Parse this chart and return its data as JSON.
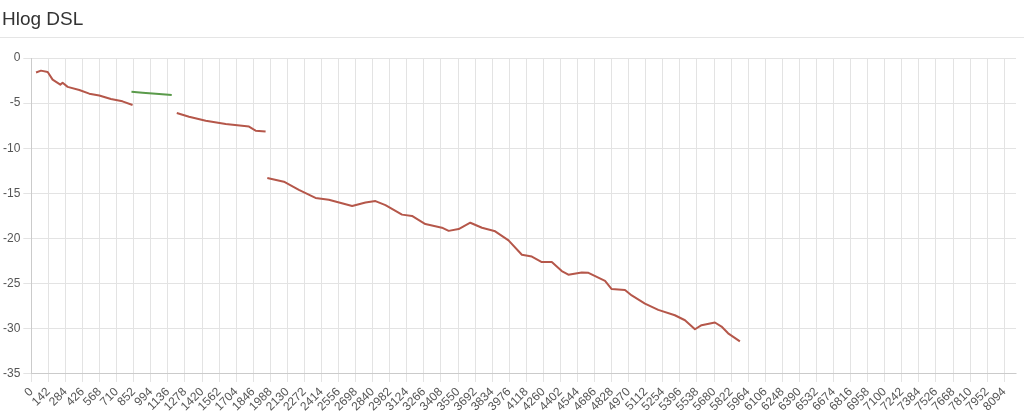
{
  "chart_data": {
    "type": "line",
    "title": "Hlog DSL",
    "xlim": [
      0,
      8192
    ],
    "xticks": [
      0,
      142,
      284,
      426,
      568,
      710,
      852,
      994,
      1136,
      1278,
      1420,
      1562,
      1704,
      1846,
      1988,
      2130,
      2272,
      2414,
      2556,
      2698,
      2840,
      2982,
      3124,
      3266,
      3408,
      3550,
      3692,
      3834,
      3976,
      4118,
      4260,
      4402,
      4544,
      4686,
      4828,
      4970,
      5112,
      5254,
      5396,
      5538,
      5680,
      5822,
      5964,
      6106,
      6248,
      6390,
      6532,
      6674,
      6816,
      6958,
      7100,
      7242,
      7384,
      7526,
      7668,
      7810,
      7952,
      8094
    ],
    "ylim": [
      -35,
      0
    ],
    "yticks": [
      -35,
      -30,
      -25,
      -20,
      -15,
      -10,
      -5,
      0
    ],
    "grid": true,
    "legend": false,
    "marker": "none",
    "line_style": "solid",
    "series": [
      {
        "color": "#b5574a",
        "x": [
          39,
          80,
          136,
          177,
          241,
          260,
          302,
          399,
          482,
          565,
          662,
          758,
          842
        ],
        "values": [
          -1.6,
          -1.4,
          -1.55,
          -2.4,
          -2.95,
          -2.75,
          -3.2,
          -3.55,
          -3.95,
          -4.15,
          -4.55,
          -4.8,
          -5.2
        ]
      },
      {
        "color": "#5a9a4a",
        "x": [
          833,
          925,
          1036,
          1168
        ],
        "values": [
          -3.75,
          -3.85,
          -3.95,
          -4.1
        ]
      },
      {
        "color": "#b5574a",
        "x": [
          1210,
          1312,
          1451,
          1617,
          1811,
          1866,
          1949
        ],
        "values": [
          -6.1,
          -6.5,
          -6.95,
          -7.3,
          -7.6,
          -8.05,
          -8.15
        ]
      },
      {
        "color": "#b5574a",
        "x": [
          1963,
          2101,
          2226,
          2364,
          2475,
          2669,
          2780,
          2863,
          2946,
          3084,
          3167,
          3278,
          3416,
          3472,
          3555,
          3652,
          3749,
          3859,
          3970,
          4081,
          4164,
          4247,
          4330,
          4413,
          4468,
          4579,
          4635,
          4773,
          4828,
          4939,
          4995,
          5105,
          5216,
          5354,
          5438,
          5521,
          5576,
          5687,
          5742,
          5797,
          5895
        ],
        "values": [
          -13.3,
          -13.7,
          -14.6,
          -15.5,
          -15.7,
          -16.4,
          -16,
          -15.85,
          -16.3,
          -17.35,
          -17.5,
          -18.4,
          -18.8,
          -19.15,
          -18.95,
          -18.25,
          -18.8,
          -19.2,
          -20.2,
          -21.8,
          -22,
          -22.6,
          -22.6,
          -23.6,
          -24,
          -23.75,
          -23.8,
          -24.7,
          -25.6,
          -25.7,
          -26.3,
          -27.2,
          -27.9,
          -28.5,
          -29.05,
          -30.05,
          -29.6,
          -29.3,
          -29.75,
          -30.5,
          -31.4
        ]
      }
    ]
  }
}
